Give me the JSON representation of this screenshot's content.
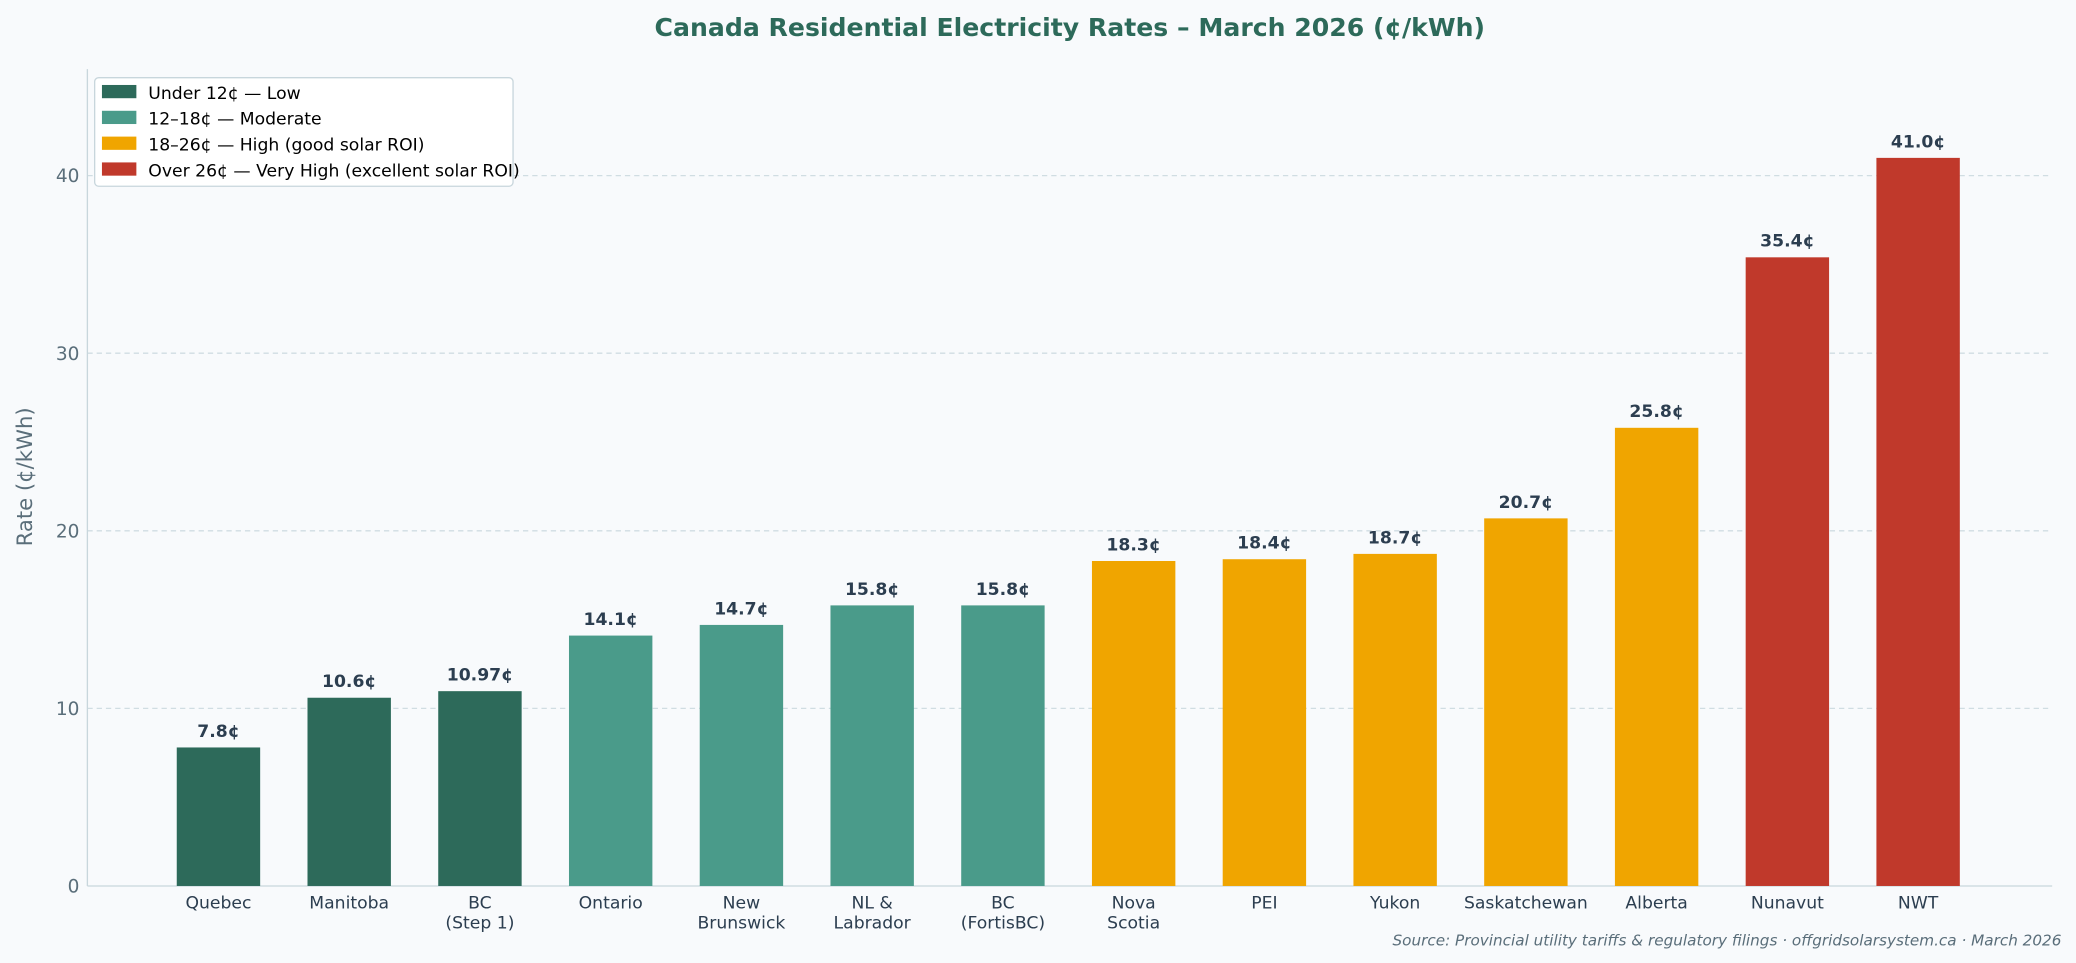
{
  "chart_data": {
    "type": "bar",
    "title": "Canada Residential Electricity Rates – March 2026 (¢/kWh)",
    "xlabel": "",
    "ylabel": "Rate (¢/kWh)",
    "ylim": [
      0,
      46
    ],
    "yticks": [
      0,
      10,
      20,
      30,
      40
    ],
    "grid": "horizontal dashed",
    "legend_placement": "top-left",
    "categories": [
      [
        "Quebec"
      ],
      [
        "Manitoba"
      ],
      [
        "BC",
        "(Step 1)"
      ],
      [
        "Ontario"
      ],
      [
        "New",
        "Brunswick"
      ],
      [
        "NL &",
        "Labrador"
      ],
      [
        "BC",
        "(FortisBC)"
      ],
      [
        "Nova",
        "Scotia"
      ],
      [
        "PEI"
      ],
      [
        "Yukon"
      ],
      [
        "Saskatchewan"
      ],
      [
        "Alberta"
      ],
      [
        "Nunavut"
      ],
      [
        "NWT"
      ]
    ],
    "values": [
      7.8,
      10.6,
      10.97,
      14.1,
      14.7,
      15.8,
      15.8,
      18.3,
      18.4,
      18.7,
      20.7,
      25.8,
      35.4,
      41.0
    ],
    "data_labels": [
      "7.8¢",
      "10.6¢",
      "10.97¢",
      "14.1¢",
      "14.7¢",
      "15.8¢",
      "15.8¢",
      "18.3¢",
      "18.4¢",
      "18.7¢",
      "20.7¢",
      "25.8¢",
      "35.4¢",
      "41.0¢"
    ],
    "tiers": [
      0,
      0,
      0,
      1,
      1,
      1,
      1,
      2,
      2,
      2,
      2,
      2,
      3,
      3
    ],
    "legend": [
      {
        "label": "Under 12¢ — Low",
        "color": "#2d6a5a"
      },
      {
        "label": "12–18¢ — Moderate",
        "color": "#4a9b8a"
      },
      {
        "label": "18–26¢ — High (good solar ROI)",
        "color": "#f0a500"
      },
      {
        "label": "Over 26¢ — Very High (excellent solar ROI)",
        "color": "#c0392b"
      }
    ],
    "source": "Source: Provincial utility tariffs & regulatory filings · offgridsolarsystem.ca · March 2026"
  }
}
